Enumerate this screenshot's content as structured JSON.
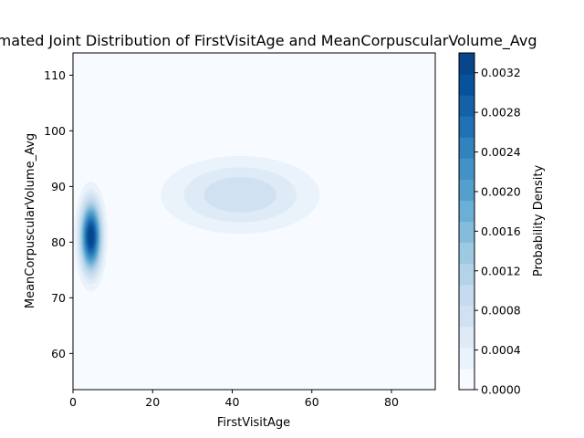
{
  "chart_data": {
    "type": "heatmap",
    "subtype": "kde-filled-contour",
    "title": "Estimated Joint Distribution of FirstVisitAge and MeanCorpuscularVolume_Avg",
    "xlabel": "FirstVisitAge",
    "ylabel": "MeanCorpuscularVolume_Avg",
    "xlim": [
      0,
      91
    ],
    "ylim": [
      53.5,
      114
    ],
    "xticks": [
      0,
      20,
      40,
      60,
      80
    ],
    "yticks": [
      60,
      70,
      80,
      90,
      100,
      110
    ],
    "colormap": "Blues",
    "grid": false,
    "clusters": [
      {
        "x": 4.5,
        "y": 81,
        "sx": 1.8,
        "sy": 4.2,
        "peak_density": 0.0034
      },
      {
        "x": 42,
        "y": 88.5,
        "sx": 12,
        "sy": 4.2,
        "peak_density": 0.00085
      }
    ],
    "colorbar": {
      "label": "Probability Density",
      "min": 0.0,
      "max": 0.0034,
      "ticks": [
        "0.0000",
        "0.0004",
        "0.0008",
        "0.0012",
        "0.0016",
        "0.0020",
        "0.0024",
        "0.0028",
        "0.0032"
      ]
    },
    "colors": {
      "background": "#f7fbff",
      "axis": "#000000"
    }
  }
}
